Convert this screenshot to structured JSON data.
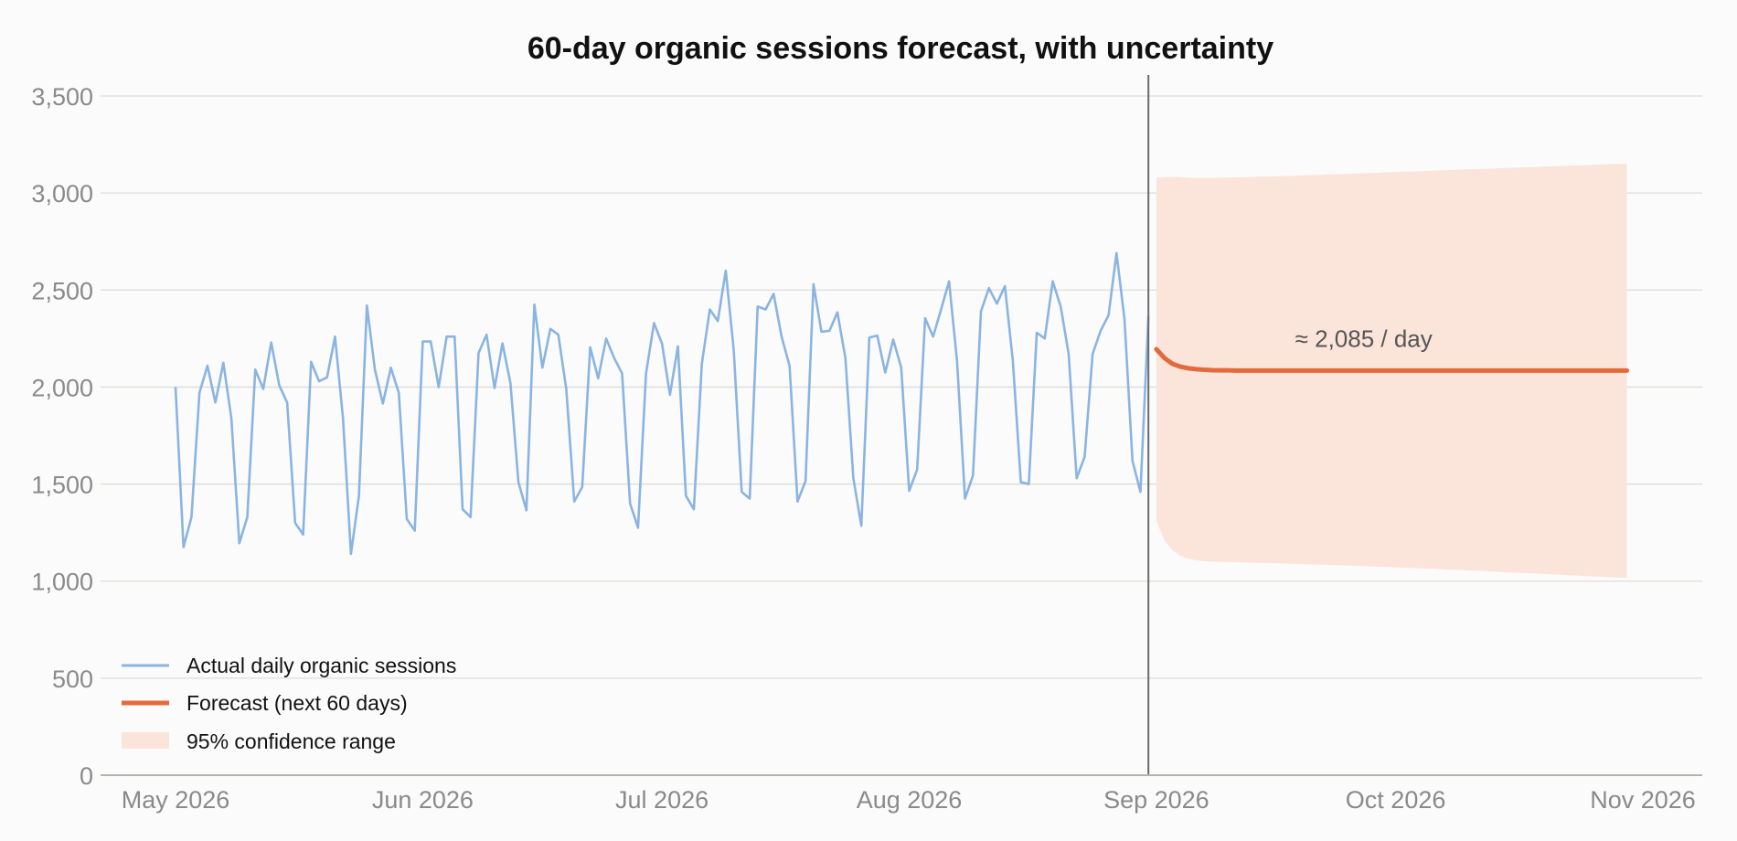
{
  "chart_data": {
    "type": "line",
    "title": "60-day organic sessions forecast, with uncertainty",
    "xlabel": "",
    "ylabel": "",
    "xlim": [
      "2026-05-01",
      "2026-11-01"
    ],
    "ylim": [
      0,
      3600
    ],
    "x_ticks": [
      "May 2026",
      "Jun 2026",
      "Jul 2026",
      "Aug 2026",
      "Sep 2026",
      "Oct 2026",
      "Nov 2026"
    ],
    "x_tick_dates": [
      "2026-05-01",
      "2026-06-01",
      "2026-07-01",
      "2026-08-01",
      "2026-09-01",
      "2026-10-01",
      "2026-11-01"
    ],
    "y_ticks": [
      0,
      500,
      1000,
      1500,
      2000,
      2500,
      3000,
      3500
    ],
    "y_tick_labels": [
      "0",
      "500",
      "1,000",
      "1,500",
      "2,000",
      "2,500",
      "3,000",
      "3,500"
    ],
    "grid": true,
    "legend_position": "bottom-left",
    "forecast_start_marker": "2026-08-31",
    "annotation": "≈ 2,085 / day",
    "colors": {
      "actual": "#8ab4e2",
      "forecast": "#e46a3b",
      "band": "#fbe5da",
      "divider": "#6b6b6b"
    },
    "series": [
      {
        "name": "Actual daily organic sessions",
        "start_date": "2026-05-01",
        "values": [
          2000,
          1175,
          1330,
          1970,
          2110,
          1920,
          2125,
          1840,
          1195,
          1330,
          2090,
          1990,
          2230,
          2010,
          1920,
          1300,
          1240,
          2130,
          2030,
          2050,
          2260,
          1840,
          1140,
          1440,
          2420,
          2090,
          1915,
          2100,
          1970,
          1320,
          1260,
          2235,
          2235,
          2000,
          2260,
          2260,
          1370,
          1330,
          2175,
          2270,
          1995,
          2225,
          2020,
          1510,
          1365,
          2425,
          2100,
          2300,
          2270,
          1990,
          1410,
          1485,
          2205,
          2045,
          2250,
          2150,
          2070,
          1400,
          1275,
          2070,
          2330,
          2225,
          1960,
          2210,
          1440,
          1370,
          2120,
          2400,
          2340,
          2600,
          2190,
          1460,
          1425,
          2415,
          2400,
          2480,
          2260,
          2110,
          1410,
          1515,
          2530,
          2285,
          2290,
          2385,
          2150,
          1530,
          1285,
          2255,
          2265,
          2075,
          2245,
          2100,
          1465,
          1575,
          2355,
          2260,
          2400,
          2545,
          2135,
          1425,
          1545,
          2390,
          2510,
          2430,
          2520,
          2135,
          1510,
          1500,
          2280,
          2250,
          2545,
          2415,
          2170,
          1530,
          1640,
          2170,
          2290,
          2370,
          2690,
          2350,
          1620,
          1460,
          2365
        ]
      },
      {
        "name": "Forecast (next 60 days)",
        "start_date": "2026-09-01",
        "values": [
          2195,
          2150,
          2120,
          2105,
          2097,
          2092,
          2089,
          2087,
          2086,
          2086,
          2085,
          2085,
          2085,
          2085,
          2085,
          2085,
          2085,
          2085,
          2085,
          2085,
          2085,
          2085,
          2085,
          2085,
          2085,
          2085,
          2085,
          2085,
          2085,
          2085,
          2085,
          2085,
          2085,
          2085,
          2085,
          2085,
          2085,
          2085,
          2085,
          2085,
          2085,
          2085,
          2085,
          2085,
          2085,
          2085,
          2085,
          2085,
          2085,
          2085,
          2085,
          2085,
          2085,
          2085,
          2085,
          2085,
          2085,
          2085,
          2085,
          2085
        ]
      },
      {
        "name": "95% confidence range",
        "start_date": "2026-09-01",
        "upper_values": [
          3080,
          3082,
          3084,
          3082,
          3080,
          3078,
          3077,
          3078,
          3079,
          3080,
          3081,
          3082,
          3083,
          3084,
          3085,
          3086,
          3088,
          3089,
          3090,
          3092,
          3093,
          3095,
          3096,
          3098,
          3099,
          3101,
          3102,
          3104,
          3105,
          3107,
          3108,
          3110,
          3111,
          3113,
          3114,
          3116,
          3117,
          3119,
          3120,
          3122,
          3123,
          3125,
          3126,
          3128,
          3129,
          3131,
          3132,
          3134,
          3135,
          3137,
          3138,
          3140,
          3141,
          3143,
          3144,
          3146,
          3147,
          3149,
          3150,
          3150
        ],
        "lower_values": [
          1310,
          1210,
          1160,
          1130,
          1115,
          1107,
          1103,
          1100,
          1099,
          1098,
          1097,
          1096,
          1095,
          1094,
          1093,
          1092,
          1091,
          1089,
          1088,
          1087,
          1086,
          1084,
          1083,
          1082,
          1080,
          1079,
          1077,
          1076,
          1074,
          1073,
          1071,
          1070,
          1068,
          1066,
          1065,
          1063,
          1061,
          1059,
          1058,
          1056,
          1054,
          1052,
          1050,
          1048,
          1046,
          1044,
          1042,
          1040,
          1038,
          1036,
          1034,
          1032,
          1030,
          1028,
          1026,
          1024,
          1022,
          1020,
          1018,
          1016
        ]
      }
    ]
  }
}
